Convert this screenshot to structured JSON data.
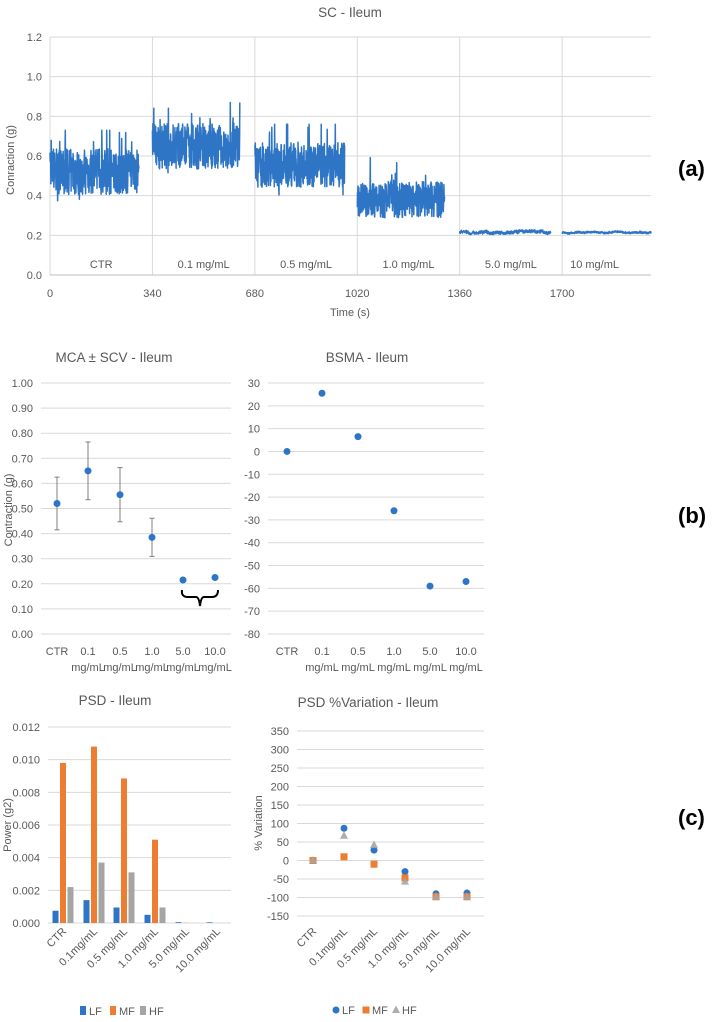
{
  "colors": {
    "blue": "#2E75C5",
    "orange": "#ED7D31",
    "gray": "#A5A5A5",
    "grid": "#D9D9D9",
    "errorbar": "#7F7F7F"
  },
  "panel_labels": [
    "(a)",
    "(b)",
    "(c)"
  ],
  "chart_data": [
    {
      "id": "sc",
      "type": "line",
      "title": "SC - Ileum",
      "xlabel": "Time (s)",
      "ylabel": "Conraction (g)",
      "xticks": [
        "0",
        "340",
        "680",
        "1020",
        "1360",
        "1700"
      ],
      "xlim": [
        0,
        1995
      ],
      "ylim": [
        0,
        1.2
      ],
      "yticks": [
        "0.0",
        "0.2",
        "0.4",
        "0.6",
        "0.8",
        "1.0",
        "1.2"
      ],
      "grid": true,
      "segments": [
        {
          "label": "CTR",
          "start": 0,
          "end": 295,
          "mean": 0.52,
          "range": [
            0.31,
            0.73
          ]
        },
        {
          "label": "0.1 mg/mL",
          "start": 340,
          "end": 630,
          "mean": 0.65,
          "range": [
            0.45,
            0.87
          ]
        },
        {
          "label": "0.5 mg/mL",
          "start": 680,
          "end": 978,
          "mean": 0.555,
          "range": [
            0.35,
            0.76
          ]
        },
        {
          "label": "1.0 mg/mL",
          "start": 1020,
          "end": 1310,
          "mean": 0.38,
          "range": [
            0.27,
            0.6
          ]
        },
        {
          "label": "5.0 mg/mL",
          "start": 1360,
          "end": 1662,
          "mean": 0.215,
          "range": [
            0.19,
            0.24
          ]
        },
        {
          "label": "10 mg/mL",
          "start": 1700,
          "end": 1995,
          "mean": 0.215,
          "range": [
            0.2,
            0.23
          ]
        }
      ]
    },
    {
      "id": "mca",
      "type": "scatter",
      "title": "MCA ± SCV - Ileum",
      "ylabel": "Contraction (g)",
      "categories": [
        [
          "CTR",
          ""
        ],
        [
          "0.1",
          "mg/mL"
        ],
        [
          "0.5",
          "mg/mL"
        ],
        [
          "1.0",
          "mg/mL"
        ],
        [
          "5.0",
          "mg/mL"
        ],
        [
          "10.0",
          "mg/mL"
        ]
      ],
      "values": [
        0.52,
        0.65,
        0.555,
        0.385,
        0.215,
        0.225
      ],
      "errors": [
        0.105,
        0.115,
        0.108,
        0.076,
        0,
        0
      ],
      "ylim": [
        0,
        1
      ],
      "yticks": [
        "0.00",
        "0.10",
        "0.20",
        "0.30",
        "0.40",
        "0.50",
        "0.60",
        "0.70",
        "0.80",
        "0.90",
        "1.00"
      ],
      "annotation": "brace grouping 5.0 and 10.0 mg/mL",
      "grid": true
    },
    {
      "id": "bsma",
      "type": "scatter",
      "title": "BSMA - Ileum",
      "categories": [
        [
          "CTR",
          ""
        ],
        [
          "0.1",
          "mg/mL"
        ],
        [
          "0.5",
          "mg/mL"
        ],
        [
          "1.0",
          "mg/mL"
        ],
        [
          "5.0",
          "mg/mL"
        ],
        [
          "10.0",
          "mg/mL"
        ]
      ],
      "values": [
        0,
        25.5,
        6.5,
        -26,
        -59,
        -57
      ],
      "ylim": [
        -80,
        30
      ],
      "yticks": [
        "-80",
        "-70",
        "-60",
        "-50",
        "-40",
        "-30",
        "-20",
        "-10",
        "0",
        "10",
        "20",
        "30"
      ],
      "grid": true
    },
    {
      "id": "psd",
      "type": "bar",
      "title": "PSD - Ileum",
      "ylabel": "Power (g2)",
      "categories": [
        "CTR",
        "0.1mg/mL",
        "0.5 mg/mL",
        "1.0 mg/mL",
        "5.0 mg/mL",
        "10.0 mg/mL"
      ],
      "series": [
        {
          "name": "LF",
          "values": [
            0.00075,
            0.0014,
            0.00095,
            0.0005,
            5e-05,
            4e-05
          ]
        },
        {
          "name": "MF",
          "values": [
            0.0098,
            0.0108,
            0.00885,
            0.0051,
            1e-05,
            0.0
          ]
        },
        {
          "name": "HF",
          "values": [
            0.0022,
            0.0037,
            0.0031,
            0.00095,
            0.0,
            0.0
          ]
        }
      ],
      "ylim": [
        0,
        0.012
      ],
      "yticks": [
        "0.000",
        "0.002",
        "0.004",
        "0.006",
        "0.008",
        "0.010",
        "0.012"
      ],
      "legend": "bottom",
      "grid": true
    },
    {
      "id": "psdvar",
      "type": "scatter",
      "title": "PSD %Variation - Ileum",
      "ylabel": "% Variation",
      "categories": [
        "CTR",
        "0.1mg/mL",
        "0.5 mg/mL",
        "1.0 mg/mL",
        "5.0 mg/mL",
        "10.0 mg/mL"
      ],
      "series": [
        {
          "name": "LF",
          "marker": "circle",
          "values": [
            0,
            87,
            28,
            -30,
            -90,
            -88
          ]
        },
        {
          "name": "MF",
          "marker": "square",
          "values": [
            0,
            10,
            -10,
            -47,
            -98,
            -98
          ]
        },
        {
          "name": "HF",
          "marker": "triangle",
          "values": [
            0,
            67,
            42,
            -57,
            -98,
            -98
          ]
        }
      ],
      "ylim": [
        -150,
        350
      ],
      "yticks": [
        "-150",
        "-100",
        "-50",
        "0",
        "50",
        "100",
        "150",
        "200",
        "250",
        "300",
        "350"
      ],
      "legend": "bottom",
      "grid": true
    }
  ]
}
